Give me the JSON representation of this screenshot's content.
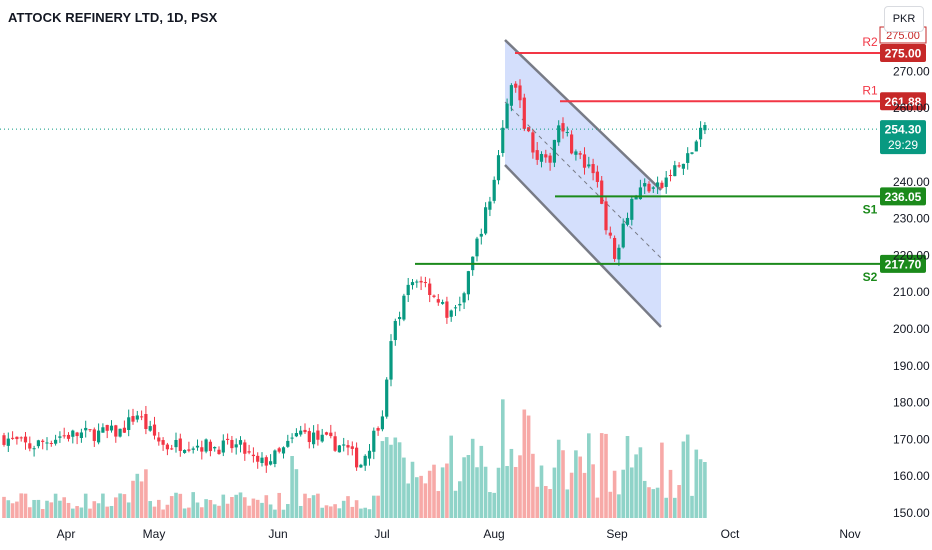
{
  "header": {
    "title": "ATTOCK REFINERY LTD, 1D, PSX",
    "currency": "PKR"
  },
  "colors": {
    "up": "#089981",
    "down": "#f23645",
    "upVol": "#8fd3c8",
    "downVol": "#f7a9a7",
    "resistance": "#f23645",
    "support": "#1b8a1b",
    "channelFill": "#c9d7fb",
    "channelLine": "#787b86"
  },
  "chart_data": {
    "type": "candlestick",
    "y_ticks": [
      150,
      160,
      170,
      180,
      190,
      200,
      210,
      220,
      230,
      240,
      260,
      270
    ],
    "x_labels": [
      "Apr",
      "May",
      "Jun",
      "Jul",
      "Aug",
      "Sep",
      "Oct",
      "Nov"
    ],
    "last_price": {
      "label": "254.30",
      "countdown": "29:29",
      "value": 254.3
    },
    "levels": [
      {
        "name": "R2",
        "label": "275.00",
        "value": 275.0,
        "kind": "resistance"
      },
      {
        "name": "R1",
        "label": "261.88",
        "value": 261.88,
        "kind": "resistance"
      },
      {
        "name": "S1",
        "label": "236.05",
        "value": 236.05,
        "kind": "support"
      },
      {
        "name": "S2",
        "label": "217.70",
        "value": 217.7,
        "kind": "support"
      }
    ],
    "r2_extra_label": "275.00",
    "ohlc_approx": [
      {
        "date": "Aug",
        "o": 245,
        "h": 265,
        "l": 240,
        "c": 262
      },
      {
        "date": "Sep",
        "o": 225,
        "h": 240,
        "l": 215,
        "c": 236
      }
    ]
  }
}
